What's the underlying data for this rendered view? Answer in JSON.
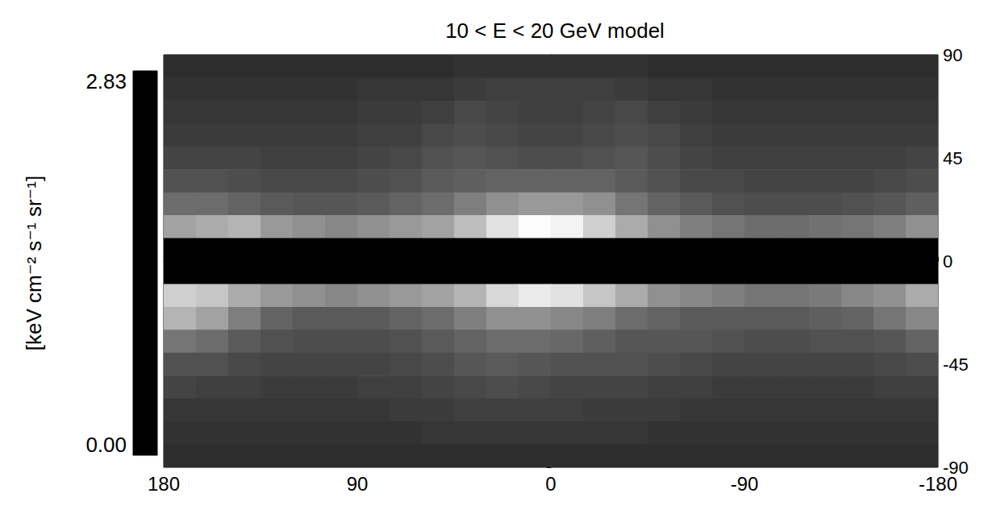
{
  "chart_data": {
    "type": "heatmap",
    "title": "10 < E < 20 GeV model",
    "x": [
      172.5,
      157.5,
      142.5,
      127.5,
      112.5,
      97.5,
      82.5,
      67.5,
      52.5,
      37.5,
      22.5,
      7.5,
      -7.5,
      -22.5,
      -37.5,
      -52.5,
      -67.5,
      -82.5,
      -97.5,
      -112.5,
      -127.5,
      -142.5,
      -157.5,
      -172.5
    ],
    "y": [
      85,
      75,
      65,
      55,
      45,
      35,
      25,
      15,
      5,
      -5,
      -15,
      -25,
      -35,
      -45,
      -55,
      -65,
      -75,
      -85
    ],
    "cells": [
      [
        0.5,
        0.5,
        0.5,
        0.5,
        0.5,
        0.5,
        0.5,
        0.5,
        0.5,
        0.55,
        0.55,
        0.55,
        0.55,
        0.55,
        0.55,
        0.5,
        0.5,
        0.5,
        0.5,
        0.5,
        0.5,
        0.5,
        0.5,
        0.5
      ],
      [
        0.55,
        0.55,
        0.55,
        0.55,
        0.55,
        0.55,
        0.6,
        0.6,
        0.6,
        0.65,
        0.7,
        0.7,
        0.7,
        0.7,
        0.65,
        0.6,
        0.6,
        0.55,
        0.55,
        0.55,
        0.55,
        0.55,
        0.55,
        0.55
      ],
      [
        0.6,
        0.6,
        0.6,
        0.6,
        0.6,
        0.6,
        0.65,
        0.65,
        0.7,
        0.8,
        0.75,
        0.7,
        0.7,
        0.75,
        0.8,
        0.7,
        0.65,
        0.6,
        0.6,
        0.6,
        0.6,
        0.6,
        0.6,
        0.6
      ],
      [
        0.65,
        0.65,
        0.65,
        0.65,
        0.65,
        0.65,
        0.7,
        0.7,
        0.8,
        0.85,
        0.8,
        0.75,
        0.75,
        0.8,
        0.85,
        0.8,
        0.7,
        0.65,
        0.65,
        0.65,
        0.65,
        0.65,
        0.65,
        0.65
      ],
      [
        0.75,
        0.75,
        0.75,
        0.7,
        0.7,
        0.7,
        0.75,
        0.8,
        0.9,
        0.95,
        0.9,
        0.85,
        0.85,
        0.9,
        0.95,
        0.85,
        0.75,
        0.7,
        0.7,
        0.7,
        0.7,
        0.7,
        0.7,
        0.75
      ],
      [
        0.9,
        0.9,
        0.85,
        0.8,
        0.8,
        0.8,
        0.85,
        0.9,
        1.0,
        1.05,
        1.1,
        1.1,
        1.1,
        1.1,
        1.0,
        0.9,
        0.8,
        0.8,
        0.75,
        0.75,
        0.75,
        0.75,
        0.8,
        0.85
      ],
      [
        1.2,
        1.2,
        1.1,
        1.0,
        0.95,
        0.95,
        1.0,
        1.1,
        1.2,
        1.4,
        1.6,
        1.7,
        1.7,
        1.6,
        1.3,
        1.1,
        1.0,
        0.9,
        0.85,
        0.85,
        0.85,
        0.9,
        0.95,
        1.05
      ],
      [
        1.8,
        1.9,
        2.0,
        1.7,
        1.6,
        1.5,
        1.6,
        1.7,
        1.8,
        2.1,
        2.5,
        2.8,
        2.7,
        2.3,
        1.9,
        1.6,
        1.4,
        1.3,
        1.2,
        1.2,
        1.25,
        1.3,
        1.4,
        1.6
      ],
      [
        0,
        0,
        0,
        0,
        0,
        0,
        0,
        0,
        0,
        0,
        0,
        0,
        0,
        0,
        0,
        0,
        0,
        0,
        0,
        0,
        0,
        0,
        0,
        0
      ],
      [
        0,
        0,
        0,
        0,
        0,
        0,
        0,
        0,
        0,
        0,
        0,
        0,
        0,
        0,
        0,
        0,
        0,
        0,
        0,
        0,
        0,
        0,
        0,
        0
      ],
      [
        2.3,
        2.2,
        1.9,
        1.7,
        1.6,
        1.5,
        1.6,
        1.7,
        1.8,
        2.0,
        2.4,
        2.6,
        2.5,
        2.2,
        1.9,
        1.6,
        1.5,
        1.4,
        1.3,
        1.3,
        1.35,
        1.5,
        1.6,
        1.9
      ],
      [
        2.0,
        1.8,
        1.4,
        1.1,
        1.0,
        1.0,
        1.0,
        1.1,
        1.2,
        1.4,
        1.6,
        1.6,
        1.5,
        1.4,
        1.2,
        1.1,
        1.0,
        1.0,
        1.0,
        1.0,
        1.05,
        1.1,
        1.3,
        1.5
      ],
      [
        1.3,
        1.2,
        1.0,
        0.9,
        0.85,
        0.85,
        0.85,
        0.9,
        1.0,
        1.1,
        1.2,
        1.2,
        1.15,
        1.05,
        0.95,
        0.95,
        0.95,
        0.9,
        0.85,
        0.85,
        0.9,
        0.9,
        0.95,
        1.1
      ],
      [
        0.9,
        0.9,
        0.8,
        0.75,
        0.75,
        0.75,
        0.75,
        0.8,
        0.85,
        0.95,
        1.0,
        0.95,
        0.9,
        0.9,
        0.9,
        0.85,
        0.8,
        0.75,
        0.75,
        0.75,
        0.75,
        0.75,
        0.8,
        0.85
      ],
      [
        0.75,
        0.7,
        0.7,
        0.65,
        0.65,
        0.65,
        0.7,
        0.7,
        0.75,
        0.8,
        0.85,
        0.8,
        0.75,
        0.75,
        0.75,
        0.7,
        0.7,
        0.65,
        0.65,
        0.65,
        0.65,
        0.65,
        0.7,
        0.7
      ],
      [
        0.6,
        0.6,
        0.6,
        0.6,
        0.6,
        0.6,
        0.6,
        0.65,
        0.65,
        0.7,
        0.7,
        0.7,
        0.7,
        0.65,
        0.65,
        0.65,
        0.6,
        0.6,
        0.6,
        0.6,
        0.6,
        0.6,
        0.6,
        0.6
      ],
      [
        0.55,
        0.55,
        0.55,
        0.55,
        0.55,
        0.55,
        0.55,
        0.55,
        0.6,
        0.6,
        0.6,
        0.6,
        0.6,
        0.6,
        0.6,
        0.55,
        0.55,
        0.55,
        0.55,
        0.55,
        0.55,
        0.55,
        0.55,
        0.55
      ],
      [
        0.5,
        0.5,
        0.5,
        0.5,
        0.5,
        0.5,
        0.5,
        0.5,
        0.5,
        0.5,
        0.5,
        0.5,
        0.5,
        0.5,
        0.5,
        0.5,
        0.5,
        0.5,
        0.5,
        0.5,
        0.5,
        0.5,
        0.5,
        0.5
      ]
    ],
    "xlim": [
      180,
      -180
    ],
    "xticks": [
      180,
      90,
      0,
      -90,
      -180
    ],
    "ylim": [
      -90,
      90
    ],
    "yticks": [
      90,
      45,
      0,
      -45,
      -90
    ],
    "colorbar": {
      "label": "[keV cm⁻² s⁻¹ sr⁻¹]",
      "range": [
        0,
        2.83
      ],
      "ticks": [
        {
          "value": 0,
          "label": "0.00"
        },
        {
          "value": 2.83,
          "label": "2.83"
        }
      ],
      "colors": [
        "#000000",
        "#ffffff"
      ]
    },
    "grid": false
  }
}
